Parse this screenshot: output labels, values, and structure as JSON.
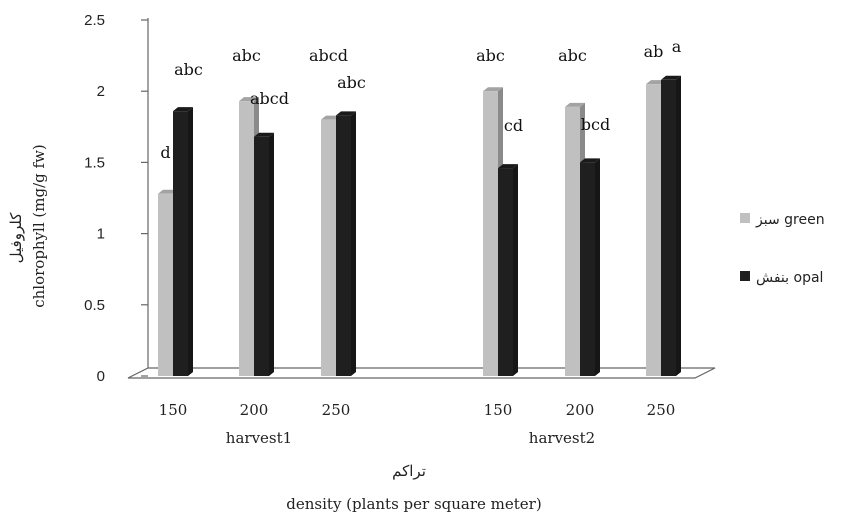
{
  "chart_data": {
    "type": "bar",
    "groups": [
      {
        "label": "harvest1",
        "categories": [
          "150",
          "200",
          "250"
        ]
      },
      {
        "label": "harvest2",
        "categories": [
          "150",
          "200",
          "250"
        ]
      }
    ],
    "series": [
      {
        "name": "سبز green",
        "color": "#c0c0c0",
        "values": [
          1.28,
          1.93,
          1.8,
          2.0,
          1.89,
          2.05
        ],
        "labels": [
          "d",
          "abc",
          "abcd",
          "abc",
          "abc",
          "ab"
        ]
      },
      {
        "name": "بنفش opal",
        "color": "#1f1f1f",
        "values": [
          1.86,
          1.68,
          1.83,
          1.46,
          1.5,
          2.08
        ],
        "labels": [
          "abc",
          "abcd",
          "abc",
          "cd",
          "bcd",
          "a"
        ]
      }
    ],
    "y_ticks": [
      "0",
      "0.5",
      "1",
      "1.5",
      "2",
      "2.5"
    ],
    "ylim": [
      0,
      2.5
    ],
    "ylabel_fa": "کلروفیل",
    "ylabel": "chlorophyll (mg/g fw)",
    "xlabel_fa": "تراکم",
    "xlabel": "density (plants per square meter)",
    "legend_position": "right",
    "grid": false
  }
}
